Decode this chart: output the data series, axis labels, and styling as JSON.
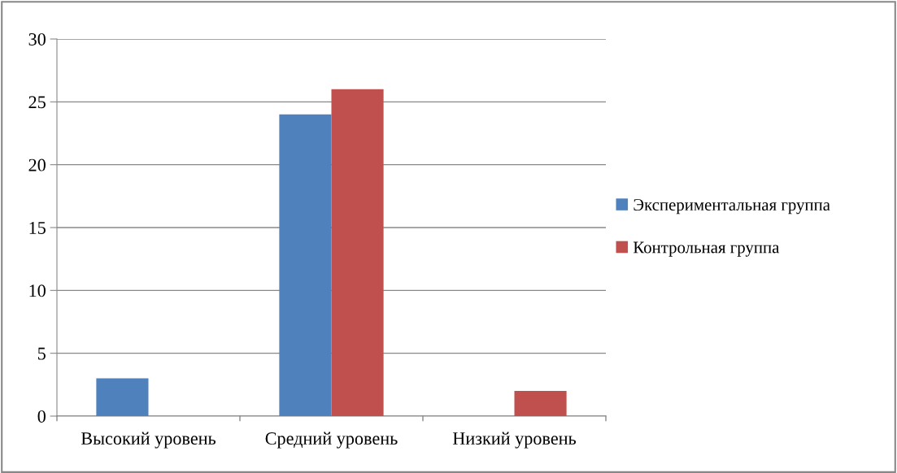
{
  "chart_data": {
    "type": "bar",
    "categories": [
      "Высокий уровень",
      "Средний уровень",
      "Низкий уровень"
    ],
    "series": [
      {
        "name": "Экспериментальная группа",
        "color": "#4f81bd",
        "values": [
          3,
          24,
          0
        ]
      },
      {
        "name": "Контрольная группа",
        "color": "#c0504d",
        "values": [
          0,
          26,
          2
        ]
      }
    ],
    "ylim": [
      0,
      30
    ],
    "yticks": [
      0,
      5,
      10,
      15,
      20,
      25,
      30
    ],
    "grid": "y",
    "legend": "right"
  }
}
